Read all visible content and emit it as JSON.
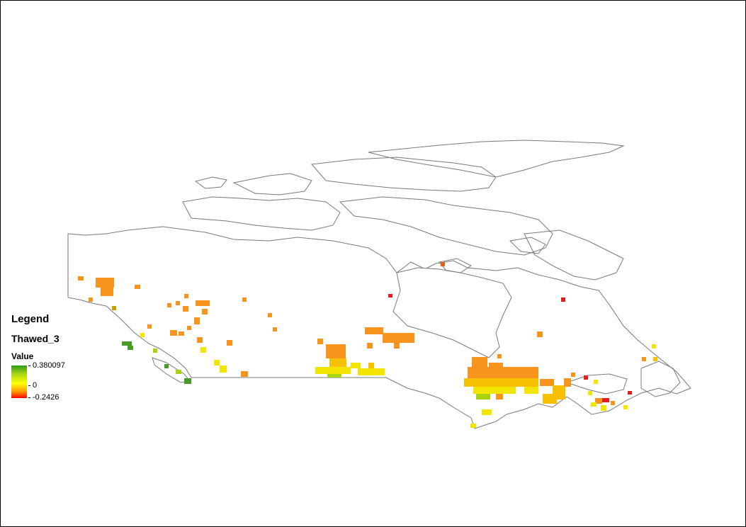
{
  "legend": {
    "title": "Legend",
    "layer": "Thawed_3",
    "field": "Value",
    "max": "0.380097",
    "mid": "0",
    "min": "-0.2426"
  },
  "colors": {
    "outline": "#7a7a7a",
    "ramp_high": "#2e9a1e",
    "ramp_mid": "#ffff00",
    "ramp_low": "#ff0000",
    "orange": "#f7941d",
    "yellow": "#f2e600",
    "green": "#4a9a2a",
    "red": "#e01e1e"
  }
}
